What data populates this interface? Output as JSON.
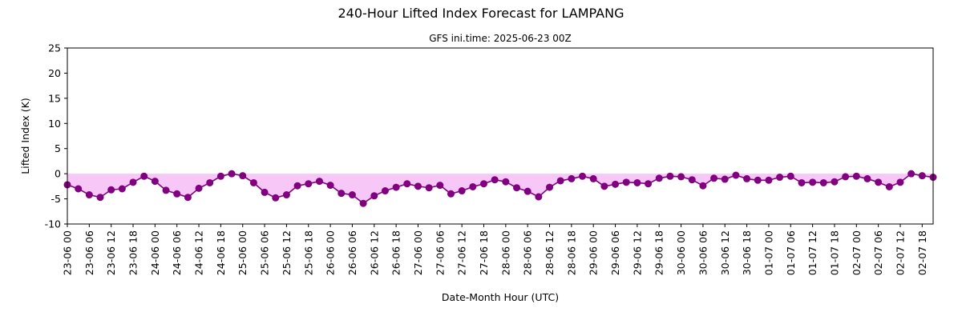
{
  "chart_data": {
    "type": "line",
    "title": "240-Hour Lifted Index Forecast for LAMPANG",
    "subtitle": "GFS ini.time: 2025-06-23 00Z",
    "xlabel": "Date-Month Hour (UTC)",
    "ylabel": "Lifted Index (K)",
    "ylim": [
      -10,
      25
    ],
    "yticks": [
      -10,
      -5,
      0,
      5,
      10,
      15,
      20,
      25
    ],
    "x_step_hours": 3,
    "x_ticks": [
      "23-06 00",
      "23-06 06",
      "23-06 12",
      "23-06 18",
      "24-06 00",
      "24-06 06",
      "24-06 12",
      "24-06 18",
      "25-06 00",
      "25-06 06",
      "25-06 12",
      "25-06 18",
      "26-06 00",
      "26-06 06",
      "26-06 12",
      "26-06 18",
      "27-06 00",
      "27-06 06",
      "27-06 12",
      "27-06 18",
      "28-06 00",
      "28-06 06",
      "28-06 12",
      "28-06 18",
      "29-06 00",
      "29-06 06",
      "29-06 12",
      "29-06 18",
      "30-06 00",
      "30-06 06",
      "30-06 12",
      "30-06 18",
      "01-07 00",
      "01-07 06",
      "01-07 12",
      "01-07 18",
      "02-07 00",
      "02-07 06",
      "02-07 12",
      "02-07 18"
    ],
    "grid": false,
    "line_color": "#800080",
    "fill_color": "#ee82ee",
    "values": [
      -2.2,
      -3.0,
      -4.2,
      -4.7,
      -3.2,
      -3.0,
      -1.7,
      -0.5,
      -1.5,
      -3.3,
      -4.0,
      -4.7,
      -2.9,
      -1.8,
      -0.5,
      0.0,
      -0.4,
      -1.8,
      -3.7,
      -4.8,
      -4.2,
      -2.4,
      -2.0,
      -1.5,
      -2.3,
      -3.9,
      -4.2,
      -5.9,
      -4.4,
      -3.4,
      -2.7,
      -2.0,
      -2.5,
      -2.8,
      -2.3,
      -4.0,
      -3.4,
      -2.6,
      -2.0,
      -1.2,
      -1.6,
      -2.8,
      -3.5,
      -4.6,
      -2.7,
      -1.4,
      -1.0,
      -0.5,
      -1.0,
      -2.5,
      -2.1,
      -1.7,
      -1.8,
      -2.0,
      -0.9,
      -0.5,
      -0.6,
      -1.2,
      -2.4,
      -0.9,
      -1.1,
      -0.3,
      -1.0,
      -1.3,
      -1.3,
      -0.7,
      -0.5,
      -1.8,
      -1.7,
      -1.8,
      -1.6,
      -0.6,
      -0.5,
      -1.0,
      -1.7,
      -2.6,
      -1.7,
      0.0,
      -0.4,
      -0.7
    ]
  }
}
